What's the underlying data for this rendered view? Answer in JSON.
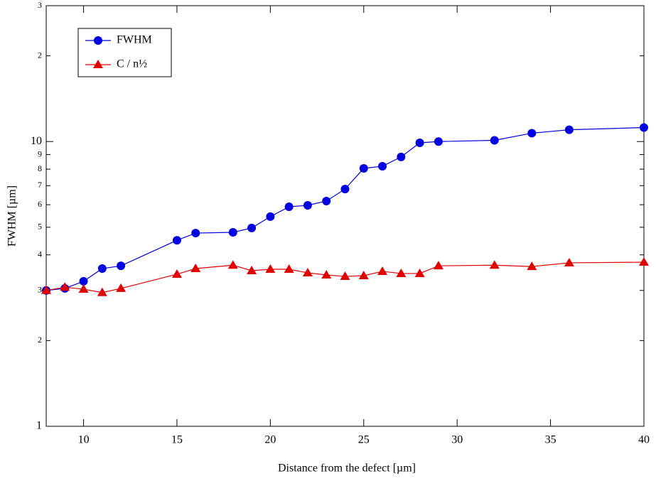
{
  "chart_data": {
    "type": "line",
    "log_y": true,
    "xlabel": "Distance from the defect [µm]",
    "ylabel": "FWHM [µm]",
    "xlim": [
      8,
      40
    ],
    "xticks": [
      10,
      15,
      20,
      25,
      30,
      35,
      40
    ],
    "ylim": [
      1,
      30
    ],
    "yticks": [
      1,
      2,
      3,
      4,
      5,
      6,
      7,
      8,
      9,
      10,
      {
        "value": 20,
        "label": "2"
      },
      {
        "value": 30,
        "label": "3"
      }
    ],
    "legend": "upper left",
    "series": [
      {
        "name": "FWHM",
        "color": "#0000e0",
        "marker": "circle",
        "x": [
          8,
          9,
          10,
          11,
          12,
          15,
          16,
          18,
          19,
          20,
          21,
          22,
          23,
          24,
          25,
          26,
          27,
          28,
          29,
          32,
          34,
          36,
          40
        ],
        "values": [
          3.0,
          3.05,
          3.23,
          3.58,
          3.66,
          4.5,
          4.77,
          4.8,
          4.97,
          5.45,
          5.9,
          5.97,
          6.18,
          6.81,
          8.05,
          8.19,
          8.83,
          9.9,
          10.0,
          10.1,
          10.7,
          11.0,
          11.2
        ]
      },
      {
        "name": "C / n½",
        "color": "#e00000",
        "marker": "triangle",
        "x": [
          8,
          9,
          10,
          11,
          12,
          15,
          16,
          18,
          19,
          20,
          21,
          22,
          23,
          24,
          25,
          26,
          27,
          28,
          29,
          32,
          34,
          36,
          40
        ],
        "values": [
          3.0,
          3.08,
          3.03,
          2.95,
          3.05,
          3.42,
          3.58,
          3.68,
          3.52,
          3.56,
          3.56,
          3.46,
          3.4,
          3.36,
          3.38,
          3.5,
          3.44,
          3.44,
          3.66,
          3.68,
          3.64,
          3.75,
          3.77
        ]
      }
    ]
  }
}
